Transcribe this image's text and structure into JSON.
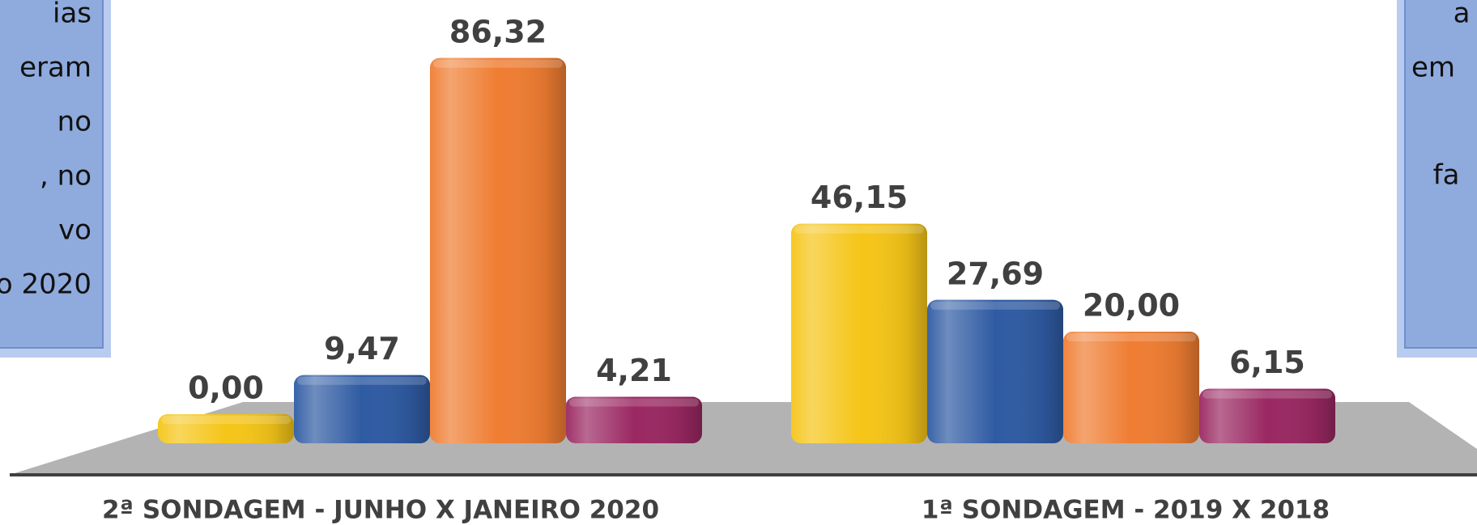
{
  "chart_data": {
    "type": "bar",
    "categories": [
      "2ª SONDAGEM - JUNHO X JANEIRO 2020",
      "1ª SONDAGEM - 2019 X 2018"
    ],
    "series": [
      {
        "color": "#f5c518",
        "values": [
          0,
          46.15
        ],
        "value_labels": [
          "0,00",
          "46,15"
        ]
      },
      {
        "color": "#2f5ba3",
        "values": [
          9.47,
          27.69
        ],
        "value_labels": [
          "9,47",
          "27,69"
        ]
      },
      {
        "color": "#ef7d32",
        "values": [
          86.32,
          20
        ],
        "value_labels": [
          "86,32",
          "20,00"
        ]
      },
      {
        "color": "#9a2862",
        "values": [
          4.21,
          6.15
        ],
        "value_labels": [
          "4,21",
          "6,15"
        ]
      }
    ],
    "ylim": [
      0,
      100
    ],
    "annotations": {
      "left_box": [
        "ias",
        "eram",
        "no",
        ", no",
        "vo",
        "o 2020"
      ],
      "right_box": [
        "a",
        "em",
        "fa"
      ]
    }
  }
}
